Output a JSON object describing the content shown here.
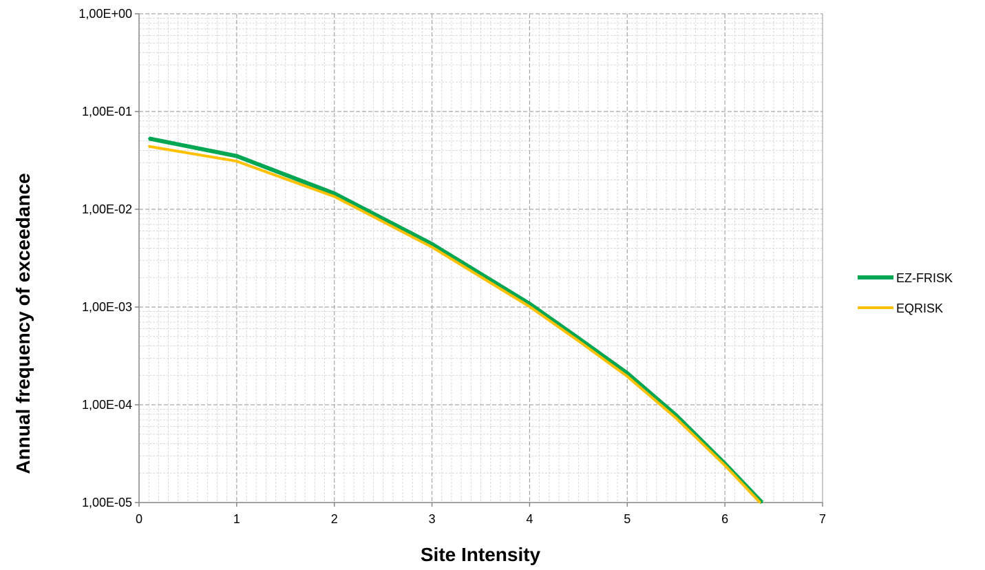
{
  "chart_data": {
    "type": "line",
    "xlabel": "Site Intensity",
    "ylabel": "Annual frequency of exceedance",
    "xlim": [
      0,
      7
    ],
    "ylim": [
      1e-05,
      1
    ],
    "yscale": "log",
    "x_ticks": [
      "0",
      "1",
      "2",
      "3",
      "4",
      "5",
      "6",
      "7"
    ],
    "y_ticks": [
      "1,00E+00",
      "1,00E-01",
      "1,00E-02",
      "1,00E-03",
      "1,00E-04",
      "1,00E-05"
    ],
    "grid": true,
    "legend_position": "right",
    "series": [
      {
        "name": "EZ-FRISK",
        "color": "#00a651",
        "x": [
          0.1,
          1,
          2,
          3,
          4,
          4.5,
          5,
          5.5,
          6,
          6.38
        ],
        "y": [
          0.053,
          0.035,
          0.0145,
          0.0044,
          0.00108,
          0.00048,
          0.00021,
          7.8e-05,
          2.5e-05,
          1e-05
        ]
      },
      {
        "name": "EQRISK",
        "color": "#ffc000",
        "x": [
          0.1,
          1,
          2,
          3,
          4,
          4.5,
          5,
          5.5,
          6,
          6.36
        ],
        "y": [
          0.044,
          0.031,
          0.0135,
          0.0041,
          0.00101,
          0.00045,
          0.000195,
          7.3e-05,
          2.4e-05,
          1e-05
        ]
      }
    ]
  }
}
